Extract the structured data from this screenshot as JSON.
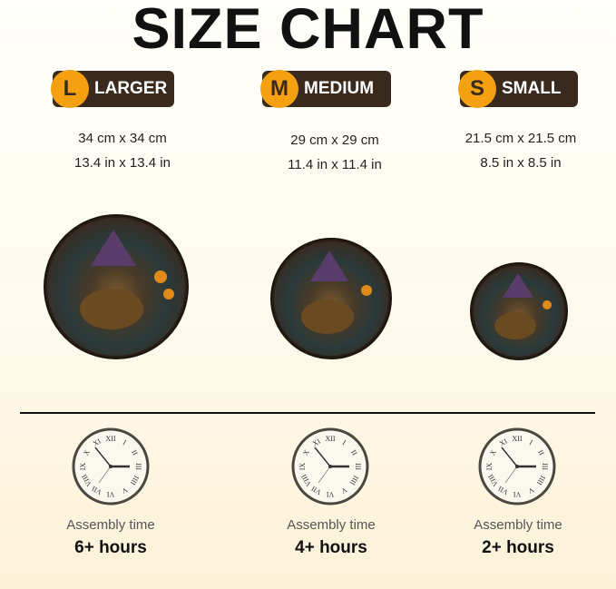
{
  "title": "SIZE CHART",
  "sizes": [
    {
      "letter": "L",
      "label": "LARGER",
      "cm": "34 cm x 34 cm",
      "inch": "13.4 in x 13.4 in",
      "assembly_label": "Assembly time",
      "hours": "6+ hours"
    },
    {
      "letter": "M",
      "label": "MEDIUM",
      "cm": "29 cm x 29 cm",
      "inch": "11.4 in x 11.4 in",
      "assembly_label": "Assembly time",
      "hours": "4+ hours"
    },
    {
      "letter": "S",
      "label": "SMALL",
      "cm": "21.5 cm x 21.5 cm",
      "inch": "8.5 in x 8.5 in",
      "assembly_label": "Assembly time",
      "hours": "2+ hours"
    }
  ],
  "colors": {
    "badge_bg": "#3a2a1e",
    "badge_circle": "#f5a00f"
  },
  "icons": [
    "clock-icon"
  ]
}
